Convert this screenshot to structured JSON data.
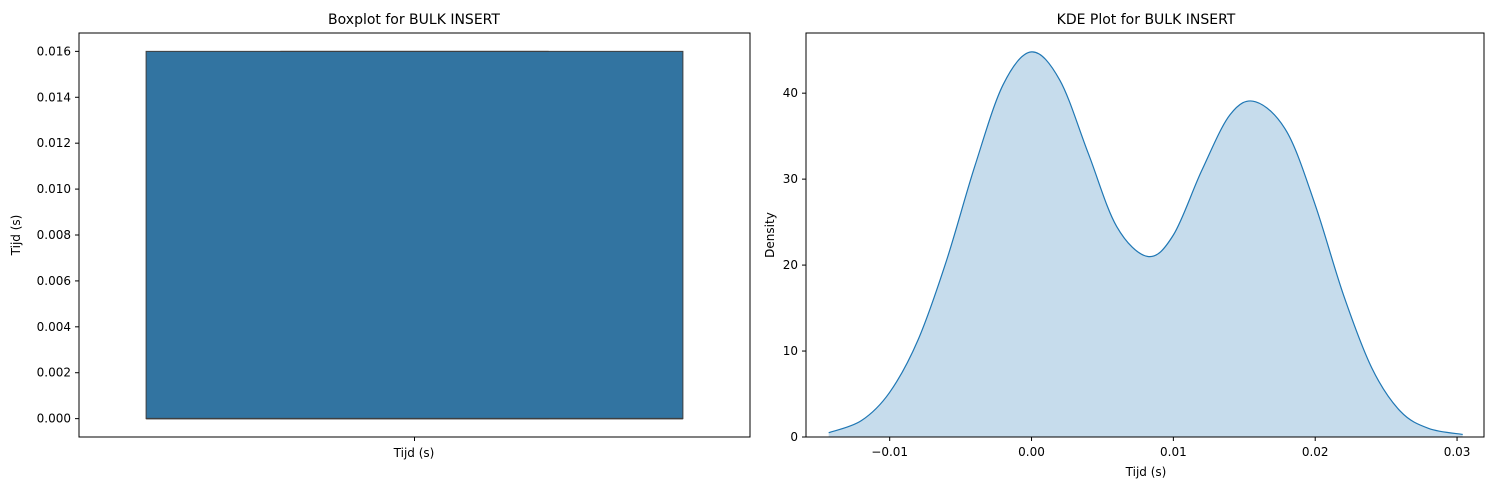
{
  "chart_data": [
    {
      "type": "box",
      "title": "Boxplot for BULK INSERT",
      "xlabel": "Tijd (s)",
      "ylabel": "Tijd (s)",
      "ylim": [
        -0.0008,
        0.0168
      ],
      "yticks": [
        "0.000",
        "0.002",
        "0.004",
        "0.006",
        "0.008",
        "0.010",
        "0.012",
        "0.014",
        "0.016"
      ],
      "ytick_values": [
        0.0,
        0.002,
        0.004,
        0.006,
        0.008,
        0.01,
        0.012,
        0.014,
        0.016
      ],
      "box": {
        "min": 0.0,
        "q1": 0.0,
        "median": 0.0,
        "q3": 0.016,
        "max": 0.016
      },
      "color": "#3274a1",
      "edge_color": "#3f3f3f",
      "grid": false
    },
    {
      "type": "area",
      "title": "KDE Plot for BULK INSERT",
      "xlabel": "Tijd (s)",
      "ylabel": "Density",
      "xlim": [
        -0.0159,
        0.0319
      ],
      "ylim": [
        0,
        47
      ],
      "xticks": [
        "−0.01",
        "0.00",
        "0.01",
        "0.02",
        "0.03"
      ],
      "xtick_values": [
        -0.01,
        0.0,
        0.01,
        0.02,
        0.03
      ],
      "yticks": [
        "0",
        "10",
        "20",
        "30",
        "40"
      ],
      "ytick_values": [
        0,
        10,
        20,
        30,
        40
      ],
      "x": [
        -0.0143,
        -0.012,
        -0.01,
        -0.008,
        -0.006,
        -0.004,
        -0.002,
        0.0,
        0.002,
        0.004,
        0.006,
        0.0082,
        0.01,
        0.012,
        0.014,
        0.0158,
        0.018,
        0.02,
        0.022,
        0.024,
        0.026,
        0.028,
        0.0304
      ],
      "y": [
        0.5,
        1.9,
        5.2,
        11.3,
        20.5,
        31.5,
        41.0,
        44.8,
        41.5,
        33.0,
        24.5,
        21.0,
        23.5,
        31.0,
        37.5,
        39.0,
        35.5,
        27.0,
        16.5,
        8.0,
        3.0,
        1.0,
        0.3
      ],
      "line_color": "#1f77b4",
      "fill_color": "#c6dcec",
      "grid": false
    }
  ]
}
